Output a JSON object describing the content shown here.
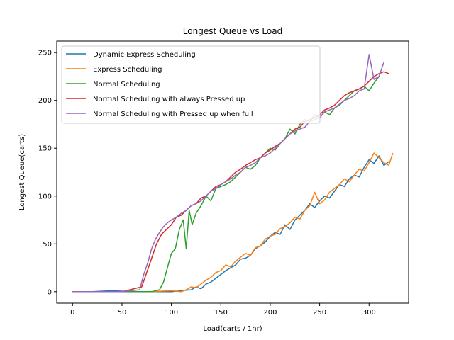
{
  "chart_data": {
    "type": "line",
    "title": "Longest Queue vs Load",
    "xlabel": "Load(carts / 1hr)",
    "ylabel": "Longest Queue(carts)",
    "xlim": [
      -16,
      340
    ],
    "ylim": [
      -12,
      262
    ],
    "xticks": [
      0,
      50,
      100,
      150,
      200,
      250,
      300
    ],
    "yticks": [
      0,
      50,
      100,
      150,
      200,
      250
    ],
    "legend_position": "upper-left",
    "series": [
      {
        "name": "Dynamic Express Scheduling",
        "color": "#1f77b4",
        "x": [
          0,
          20,
          40,
          60,
          80,
          100,
          110,
          120,
          125,
          130,
          135,
          140,
          145,
          150,
          155,
          160,
          165,
          170,
          175,
          180,
          185,
          190,
          195,
          200,
          205,
          210,
          215,
          220,
          225,
          230,
          235,
          240,
          245,
          250,
          255,
          260,
          265,
          270,
          275,
          280,
          285,
          290,
          295,
          300,
          305,
          310,
          315,
          320
        ],
        "y": [
          0,
          0,
          1,
          0,
          0,
          0,
          1,
          2,
          5,
          3,
          8,
          10,
          14,
          18,
          22,
          25,
          28,
          34,
          35,
          38,
          45,
          48,
          52,
          58,
          62,
          60,
          70,
          65,
          75,
          80,
          85,
          92,
          88,
          95,
          100,
          98,
          105,
          112,
          110,
          118,
          122,
          120,
          130,
          138,
          134,
          142,
          132,
          136
        ]
      },
      {
        "name": "Express Scheduling",
        "color": "#ff7f0e",
        "x": [
          0,
          20,
          40,
          60,
          80,
          100,
          110,
          115,
          120,
          125,
          130,
          135,
          140,
          145,
          150,
          155,
          160,
          165,
          170,
          175,
          180,
          185,
          190,
          195,
          200,
          205,
          210,
          215,
          220,
          225,
          230,
          235,
          240,
          245,
          250,
          255,
          260,
          265,
          270,
          275,
          280,
          285,
          290,
          295,
          300,
          305,
          310,
          315,
          320,
          324
        ],
        "y": [
          0,
          0,
          0,
          0,
          0,
          1,
          0,
          2,
          5,
          4,
          8,
          12,
          15,
          20,
          22,
          28,
          26,
          32,
          36,
          40,
          38,
          46,
          48,
          55,
          58,
          60,
          66,
          68,
          72,
          78,
          76,
          85,
          90,
          104,
          92,
          96,
          104,
          108,
          112,
          118,
          115,
          122,
          128,
          126,
          135,
          145,
          140,
          135,
          132,
          145
        ]
      },
      {
        "name": "Normal Scheduling",
        "color": "#2ca02c",
        "x": [
          0,
          50,
          80,
          88,
          92,
          96,
          100,
          104,
          108,
          112,
          115,
          118,
          121,
          125,
          130,
          135,
          140,
          145,
          150,
          155,
          160,
          165,
          170,
          175,
          180,
          185,
          190,
          195,
          200,
          205,
          210,
          215,
          220,
          225,
          230,
          235,
          240,
          245,
          250,
          255,
          260,
          265,
          270,
          275,
          280,
          285,
          290,
          295,
          300,
          305,
          310
        ],
        "y": [
          0,
          0,
          0,
          2,
          10,
          25,
          40,
          45,
          65,
          75,
          45,
          85,
          70,
          82,
          90,
          100,
          95,
          108,
          110,
          112,
          115,
          120,
          125,
          130,
          128,
          132,
          140,
          145,
          150,
          148,
          155,
          160,
          170,
          165,
          175,
          180,
          178,
          185,
          182,
          188,
          185,
          192,
          195,
          200,
          205,
          210,
          212,
          215,
          210,
          218,
          225
        ]
      },
      {
        "name": "Normal Scheduling with always Pressed up",
        "color": "#d62728",
        "x": [
          0,
          50,
          70,
          75,
          80,
          85,
          90,
          95,
          100,
          105,
          110,
          115,
          120,
          125,
          130,
          135,
          140,
          145,
          150,
          155,
          160,
          165,
          170,
          175,
          180,
          185,
          190,
          195,
          200,
          205,
          210,
          215,
          220,
          225,
          230,
          235,
          240,
          245,
          250,
          255,
          260,
          265,
          270,
          275,
          280,
          285,
          290,
          295,
          300,
          305,
          310,
          315,
          320
        ],
        "y": [
          0,
          0,
          5,
          20,
          35,
          50,
          60,
          65,
          70,
          78,
          80,
          85,
          90,
          92,
          98,
          100,
          105,
          110,
          112,
          115,
          120,
          125,
          128,
          132,
          135,
          138,
          140,
          145,
          148,
          152,
          155,
          160,
          165,
          170,
          172,
          178,
          180,
          182,
          185,
          190,
          192,
          195,
          200,
          205,
          208,
          210,
          212,
          215,
          220,
          225,
          228,
          230,
          228
        ]
      },
      {
        "name": "Normal Scheduling with Pressed up when full",
        "color": "#9467bd",
        "x": [
          0,
          50,
          68,
          72,
          76,
          80,
          84,
          88,
          92,
          96,
          100,
          105,
          110,
          115,
          120,
          125,
          130,
          135,
          140,
          145,
          150,
          155,
          160,
          165,
          170,
          175,
          180,
          185,
          190,
          195,
          200,
          205,
          210,
          215,
          220,
          225,
          230,
          235,
          240,
          245,
          250,
          255,
          260,
          265,
          270,
          275,
          280,
          285,
          290,
          295,
          300,
          305,
          310,
          315
        ],
        "y": [
          0,
          0,
          2,
          18,
          30,
          45,
          55,
          62,
          68,
          72,
          75,
          78,
          82,
          85,
          90,
          92,
          95,
          100,
          105,
          108,
          112,
          115,
          118,
          122,
          125,
          130,
          132,
          135,
          140,
          142,
          145,
          150,
          155,
          160,
          165,
          168,
          170,
          172,
          178,
          180,
          182,
          188,
          190,
          192,
          196,
          200,
          202,
          205,
          210,
          212,
          248,
          222,
          225,
          240
        ]
      }
    ]
  }
}
